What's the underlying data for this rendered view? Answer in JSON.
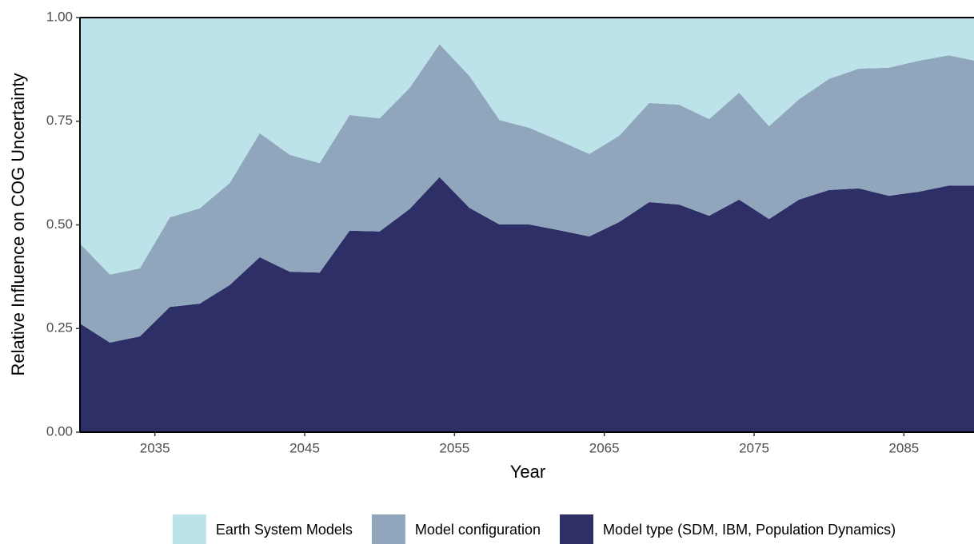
{
  "chart_data": {
    "type": "stacked_area",
    "x_label": "Year",
    "y_label": "Relative Influence on COG Uncertainty",
    "x": [
      2030,
      2032,
      2034,
      2036,
      2038,
      2040,
      2042,
      2044,
      2046,
      2048,
      2050,
      2052,
      2054,
      2056,
      2058,
      2060,
      2062,
      2064,
      2066,
      2068,
      2070,
      2072,
      2074,
      2076,
      2078,
      2080,
      2082,
      2084,
      2086,
      2088,
      2090
    ],
    "series": [
      {
        "name": "Earth System Models",
        "color": "#bde3ea",
        "values": [
          0.545,
          0.62,
          0.605,
          0.482,
          0.46,
          0.399,
          0.279,
          0.331,
          0.351,
          0.235,
          0.243,
          0.17,
          0.064,
          0.141,
          0.247,
          0.266,
          0.297,
          0.329,
          0.285,
          0.206,
          0.21,
          0.245,
          0.181,
          0.262,
          0.197,
          0.148,
          0.123,
          0.121,
          0.104,
          0.091,
          0.106
        ]
      },
      {
        "name": "Model configuration",
        "color": "#8fa6bd",
        "values": [
          0.193,
          0.164,
          0.164,
          0.216,
          0.23,
          0.246,
          0.299,
          0.282,
          0.264,
          0.279,
          0.273,
          0.292,
          0.321,
          0.318,
          0.252,
          0.233,
          0.216,
          0.199,
          0.208,
          0.239,
          0.241,
          0.233,
          0.258,
          0.224,
          0.242,
          0.268,
          0.289,
          0.309,
          0.316,
          0.314,
          0.299
        ]
      },
      {
        "name": "Model type (SDM, IBM, Population Dynamics)",
        "color": "#2d2f66",
        "values": [
          0.262,
          0.216,
          0.231,
          0.302,
          0.31,
          0.355,
          0.422,
          0.387,
          0.385,
          0.486,
          0.484,
          0.538,
          0.615,
          0.541,
          0.501,
          0.501,
          0.487,
          0.472,
          0.507,
          0.555,
          0.549,
          0.522,
          0.561,
          0.514,
          0.561,
          0.584,
          0.588,
          0.57,
          0.58,
          0.595,
          0.595
        ]
      }
    ],
    "xlim": [
      2030,
      2090
    ],
    "xticks": [
      2035,
      2045,
      2055,
      2065,
      2075,
      2085
    ],
    "ylim": [
      0,
      1
    ],
    "yticks": [
      {
        "value": 0,
        "label": "0.00"
      },
      {
        "value": 0.25,
        "label": "0.25"
      },
      {
        "value": 0.5,
        "label": "0.50"
      },
      {
        "value": 0.75,
        "label": "0.75"
      },
      {
        "value": 1,
        "label": "1.00"
      }
    ],
    "legend": "bottom"
  }
}
